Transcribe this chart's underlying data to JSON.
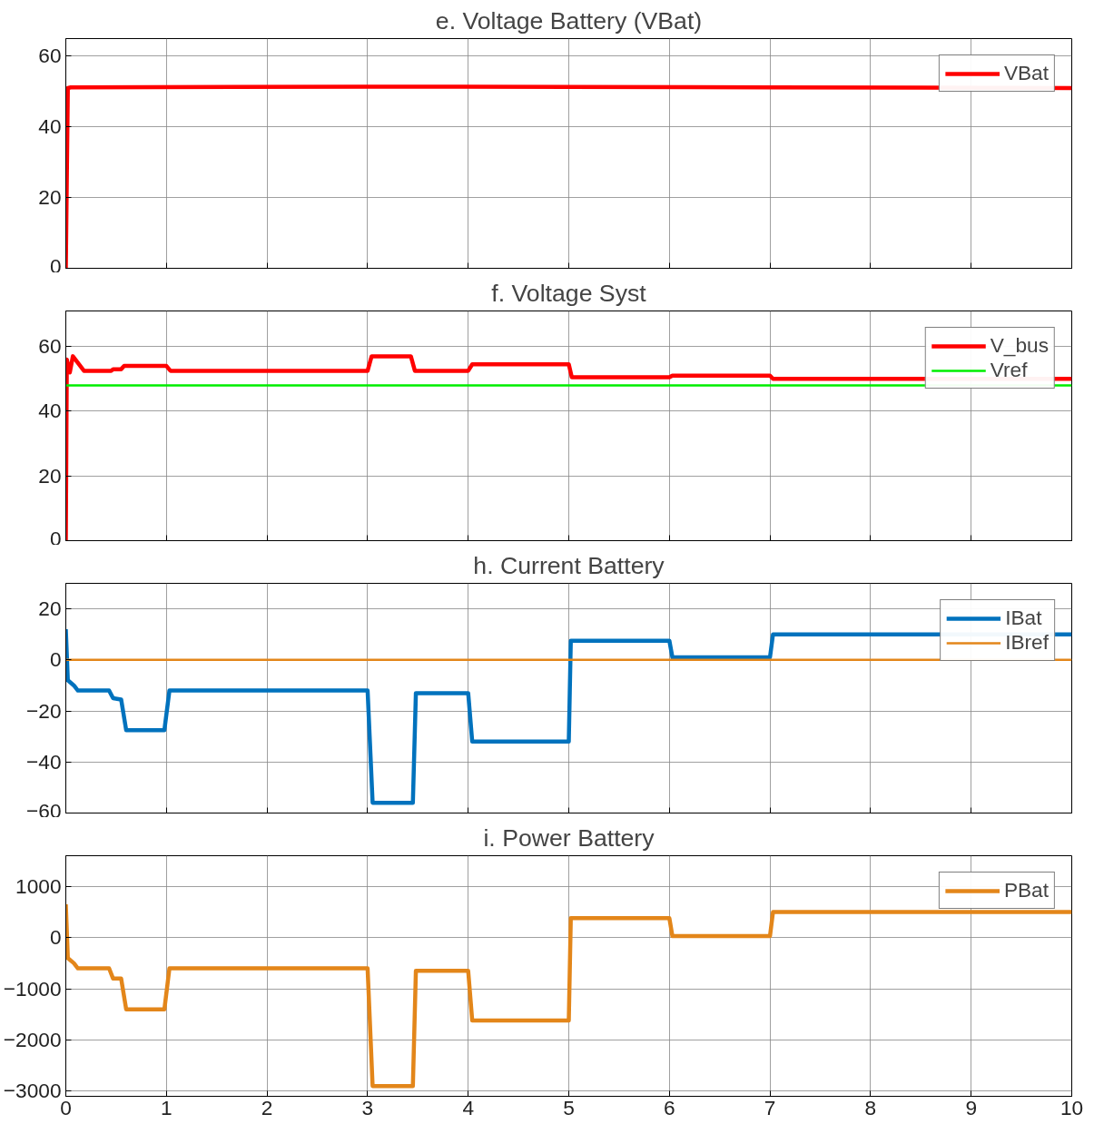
{
  "chart_data": [
    {
      "type": "line",
      "title": "e. Voltage Battery (VBat)",
      "xlim": [
        0,
        10
      ],
      "xticks": [
        0,
        1,
        2,
        3,
        4,
        5,
        6,
        7,
        8,
        9,
        10
      ],
      "ylim": [
        0,
        65
      ],
      "yticks": [
        0,
        20,
        40,
        60
      ],
      "grid": true,
      "legend": "top right",
      "tick_labels": "y",
      "line_style": "solid",
      "series": [
        {
          "name": "VBat",
          "color": "#ff0000",
          "x": [
            0,
            0.02,
            0.05,
            3,
            5,
            7,
            10
          ],
          "values": [
            0,
            51,
            51.2,
            51.4,
            51.3,
            51.2,
            51
          ]
        }
      ]
    },
    {
      "type": "line",
      "title": "f. Voltage Syst",
      "xlim": [
        0,
        10
      ],
      "xticks": [
        0,
        1,
        2,
        3,
        4,
        5,
        6,
        7,
        8,
        9,
        10
      ],
      "ylim": [
        0,
        71
      ],
      "yticks": [
        0,
        20,
        40,
        60
      ],
      "grid": true,
      "legend": "top right",
      "tick_labels": "y",
      "line_style": "solid",
      "series": [
        {
          "name": "V_bus",
          "color": "#ff0000",
          "x": [
            0,
            0.01,
            0.04,
            0.07,
            0.18,
            0.45,
            0.47,
            0.55,
            0.58,
            1.0,
            1.04,
            3.0,
            3.04,
            3.43,
            3.47,
            4.0,
            4.04,
            5.0,
            5.03,
            6.0,
            6.03,
            7.0,
            7.03,
            10
          ],
          "values": [
            0,
            56,
            52,
            57,
            52.5,
            52.5,
            53,
            53,
            54,
            54,
            52.5,
            52.5,
            57,
            57,
            52.5,
            52.5,
            54.5,
            54.5,
            50.5,
            50.5,
            51,
            51,
            50,
            50
          ]
        },
        {
          "name": "Vref",
          "color": "#00ee00",
          "x": [
            0,
            10
          ],
          "values": [
            48,
            48
          ]
        }
      ]
    },
    {
      "type": "line",
      "title": "h. Current Battery",
      "xlim": [
        0,
        10
      ],
      "xticks": [
        0,
        1,
        2,
        3,
        4,
        5,
        6,
        7,
        8,
        9,
        10
      ],
      "ylim": [
        -60,
        30
      ],
      "yticks": [
        -60,
        -40,
        -20,
        0,
        20
      ],
      "grid": true,
      "legend": "top right",
      "tick_labels": "y",
      "line_style": "solid",
      "series": [
        {
          "name": "IBat",
          "color": "#0072bd",
          "x": [
            0,
            0.02,
            0.08,
            0.12,
            0.43,
            0.47,
            0.55,
            0.6,
            0.98,
            1.03,
            3.0,
            3.05,
            3.45,
            3.48,
            4.0,
            4.04,
            5.0,
            5.02,
            6.0,
            6.03,
            7.0,
            7.03,
            10
          ],
          "values": [
            12,
            -8,
            -10,
            -12,
            -12,
            -15,
            -15.5,
            -27.5,
            -27.5,
            -12,
            -12,
            -56,
            -56,
            -13,
            -13,
            -32,
            -32,
            7.5,
            7.5,
            1,
            1,
            10,
            10
          ]
        },
        {
          "name": "IBref",
          "color": "#e3861a",
          "x": [
            0,
            10
          ],
          "values": [
            0,
            0
          ]
        }
      ]
    },
    {
      "type": "line",
      "title": "i. Power Battery",
      "xlim": [
        0,
        10
      ],
      "xticks": [
        0,
        1,
        2,
        3,
        4,
        5,
        6,
        7,
        8,
        9,
        10
      ],
      "ylim": [
        -3100,
        1600
      ],
      "yticks": [
        -3000,
        -2000,
        -1000,
        0,
        1000
      ],
      "grid": true,
      "legend": "top right",
      "line_style": "solid",
      "series": [
        {
          "name": "PBat",
          "color": "#e3861a",
          "x": [
            0,
            0.02,
            0.08,
            0.12,
            0.43,
            0.47,
            0.55,
            0.6,
            0.98,
            1.03,
            3.0,
            3.05,
            3.45,
            3.48,
            4.0,
            4.04,
            5.0,
            5.02,
            6.0,
            6.03,
            7.0,
            7.03,
            10
          ],
          "values": [
            650,
            -400,
            -500,
            -600,
            -600,
            -800,
            -800,
            -1400,
            -1400,
            -600,
            -600,
            -2900,
            -2900,
            -650,
            -650,
            -1620,
            -1620,
            380,
            380,
            30,
            30,
            500,
            500
          ]
        }
      ]
    }
  ]
}
